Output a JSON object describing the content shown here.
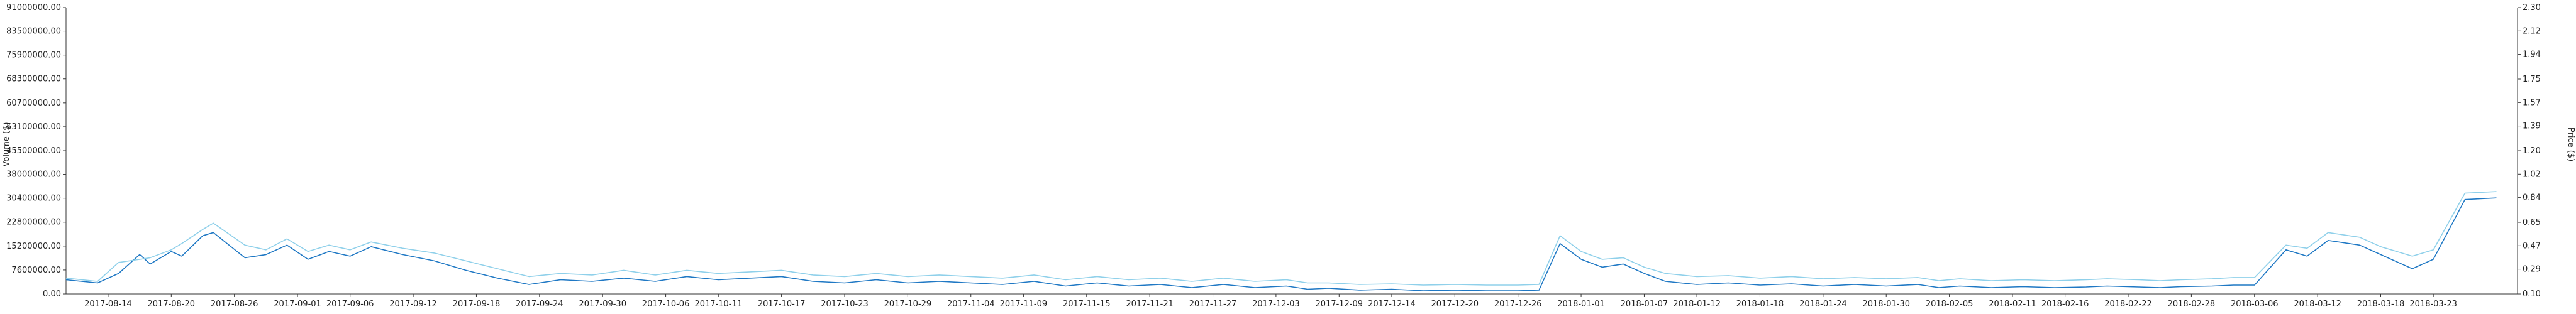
{
  "chart_data": {
    "type": "line",
    "title": "",
    "xlabel": "",
    "y_left_label": "Volume ($)",
    "y_right_label": "Price ($)",
    "x_range": [
      "2017-08-10",
      "2018-03-31"
    ],
    "y_left_range": [
      0,
      91000000
    ],
    "y_right_range": [
      0.1,
      2.3
    ],
    "y_left_ticks": [
      "0.00",
      "7600000.00",
      "15200000.00",
      "22800000.00",
      "30400000.00",
      "38000000.00",
      "45500000.00",
      "53100000.00",
      "60700000.00",
      "68300000.00",
      "75900000.00",
      "83500000.00",
      "91000000.00"
    ],
    "y_right_ticks": [
      "0.10",
      "0.29",
      "0.47",
      "0.65",
      "0.84",
      "1.02",
      "1.20",
      "1.39",
      "1.57",
      "1.75",
      "1.94",
      "2.12",
      "2.30"
    ],
    "x_ticks": [
      "2017-08-14",
      "2017-08-20",
      "2017-08-26",
      "2017-09-01",
      "2017-09-06",
      "2017-09-12",
      "2017-09-18",
      "2017-09-24",
      "2017-09-30",
      "2017-10-06",
      "2017-10-11",
      "2017-10-17",
      "2017-10-23",
      "2017-10-29",
      "2017-11-04",
      "2017-11-09",
      "2017-11-15",
      "2017-11-21",
      "2017-11-27",
      "2017-12-03",
      "2017-12-09",
      "2017-12-14",
      "2017-12-20",
      "2017-12-26",
      "2018-01-01",
      "2018-01-07",
      "2018-01-12",
      "2018-01-18",
      "2018-01-24",
      "2018-01-30",
      "2018-02-05",
      "2018-02-11",
      "2018-02-16",
      "2018-02-22",
      "2018-02-28",
      "2018-03-06",
      "2018-03-12",
      "2018-03-18",
      "2018-03-23"
    ],
    "grid": false,
    "colors": {
      "volume": "#1f78c4",
      "price": "#8fd0ea"
    },
    "series": [
      {
        "axis": "left",
        "color": "#1f78c4",
        "points": [
          [
            "2017-08-10",
            4500000
          ],
          [
            "2017-08-13",
            3500000
          ],
          [
            "2017-08-15",
            6500000
          ],
          [
            "2017-08-17",
            12500000
          ],
          [
            "2017-08-18",
            9500000
          ],
          [
            "2017-08-20",
            13500000
          ],
          [
            "2017-08-21",
            12000000
          ],
          [
            "2017-08-23",
            18500000
          ],
          [
            "2017-08-24",
            19500000
          ],
          [
            "2017-08-27",
            11500000
          ],
          [
            "2017-08-29",
            12500000
          ],
          [
            "2017-08-31",
            15500000
          ],
          [
            "2017-09-02",
            11000000
          ],
          [
            "2017-09-04",
            13500000
          ],
          [
            "2017-09-06",
            12000000
          ],
          [
            "2017-09-08",
            15000000
          ],
          [
            "2017-09-11",
            12500000
          ],
          [
            "2017-09-14",
            10500000
          ],
          [
            "2017-09-17",
            7500000
          ],
          [
            "2017-09-20",
            5000000
          ],
          [
            "2017-09-23",
            3000000
          ],
          [
            "2017-09-26",
            4500000
          ],
          [
            "2017-09-29",
            4000000
          ],
          [
            "2017-10-02",
            5000000
          ],
          [
            "2017-10-05",
            4000000
          ],
          [
            "2017-10-08",
            5500000
          ],
          [
            "2017-10-11",
            4500000
          ],
          [
            "2017-10-14",
            5000000
          ],
          [
            "2017-10-17",
            5500000
          ],
          [
            "2017-10-20",
            4000000
          ],
          [
            "2017-10-23",
            3500000
          ],
          [
            "2017-10-26",
            4500000
          ],
          [
            "2017-10-29",
            3500000
          ],
          [
            "2017-11-01",
            4000000
          ],
          [
            "2017-11-04",
            3500000
          ],
          [
            "2017-11-07",
            3000000
          ],
          [
            "2017-11-10",
            4000000
          ],
          [
            "2017-11-13",
            2500000
          ],
          [
            "2017-11-16",
            3500000
          ],
          [
            "2017-11-19",
            2500000
          ],
          [
            "2017-11-22",
            3000000
          ],
          [
            "2017-11-25",
            2000000
          ],
          [
            "2017-11-28",
            3000000
          ],
          [
            "2017-12-01",
            2000000
          ],
          [
            "2017-12-04",
            2500000
          ],
          [
            "2017-12-06",
            1500000
          ],
          [
            "2017-12-08",
            1800000
          ],
          [
            "2017-12-11",
            1200000
          ],
          [
            "2017-12-14",
            1500000
          ],
          [
            "2017-12-17",
            1000000
          ],
          [
            "2017-12-20",
            1200000
          ],
          [
            "2017-12-23",
            1000000
          ],
          [
            "2017-12-26",
            1000000
          ],
          [
            "2017-12-28",
            1200000
          ],
          [
            "2017-12-30",
            16000000
          ],
          [
            "2018-01-01",
            11000000
          ],
          [
            "2018-01-03",
            8500000
          ],
          [
            "2018-01-05",
            9500000
          ],
          [
            "2018-01-07",
            6500000
          ],
          [
            "2018-01-09",
            4000000
          ],
          [
            "2018-01-12",
            3000000
          ],
          [
            "2018-01-15",
            3500000
          ],
          [
            "2018-01-18",
            2800000
          ],
          [
            "2018-01-21",
            3200000
          ],
          [
            "2018-01-24",
            2500000
          ],
          [
            "2018-01-27",
            3000000
          ],
          [
            "2018-01-30",
            2500000
          ],
          [
            "2018-02-02",
            3000000
          ],
          [
            "2018-02-04",
            2000000
          ],
          [
            "2018-02-06",
            2500000
          ],
          [
            "2018-02-09",
            2000000
          ],
          [
            "2018-02-12",
            2300000
          ],
          [
            "2018-02-15",
            2000000
          ],
          [
            "2018-02-18",
            2200000
          ],
          [
            "2018-02-20",
            2500000
          ],
          [
            "2018-02-23",
            2200000
          ],
          [
            "2018-02-25",
            2000000
          ],
          [
            "2018-02-27",
            2300000
          ],
          [
            "2018-03-02",
            2500000
          ],
          [
            "2018-03-04",
            2800000
          ],
          [
            "2018-03-06",
            2800000
          ],
          [
            "2018-03-09",
            14000000
          ],
          [
            "2018-03-11",
            12000000
          ],
          [
            "2018-03-13",
            17000000
          ],
          [
            "2018-03-16",
            15500000
          ],
          [
            "2018-03-18",
            12500000
          ],
          [
            "2018-03-21",
            8000000
          ],
          [
            "2018-03-23",
            11000000
          ],
          [
            "2018-03-26",
            30000000
          ],
          [
            "2018-03-29",
            30500000
          ]
        ]
      },
      {
        "axis": "left",
        "color": "#8fd0ea",
        "points": [
          [
            "2017-08-10",
            5000000
          ],
          [
            "2017-08-13",
            4000000
          ],
          [
            "2017-08-15",
            10000000
          ],
          [
            "2017-08-17",
            11000000
          ],
          [
            "2017-08-18",
            11500000
          ],
          [
            "2017-08-20",
            14000000
          ],
          [
            "2017-08-21",
            16000000
          ],
          [
            "2017-08-23",
            20500000
          ],
          [
            "2017-08-24",
            22500000
          ],
          [
            "2017-08-27",
            15500000
          ],
          [
            "2017-08-29",
            14000000
          ],
          [
            "2017-08-31",
            17500000
          ],
          [
            "2017-09-02",
            13500000
          ],
          [
            "2017-09-04",
            15500000
          ],
          [
            "2017-09-06",
            14000000
          ],
          [
            "2017-09-08",
            16500000
          ],
          [
            "2017-09-11",
            14500000
          ],
          [
            "2017-09-14",
            13000000
          ],
          [
            "2017-09-17",
            10500000
          ],
          [
            "2017-09-20",
            8000000
          ],
          [
            "2017-09-23",
            5500000
          ],
          [
            "2017-09-26",
            6500000
          ],
          [
            "2017-09-29",
            6000000
          ],
          [
            "2017-10-02",
            7500000
          ],
          [
            "2017-10-05",
            6000000
          ],
          [
            "2017-10-08",
            7500000
          ],
          [
            "2017-10-11",
            6500000
          ],
          [
            "2017-10-14",
            7000000
          ],
          [
            "2017-10-17",
            7500000
          ],
          [
            "2017-10-20",
            6000000
          ],
          [
            "2017-10-23",
            5500000
          ],
          [
            "2017-10-26",
            6500000
          ],
          [
            "2017-10-29",
            5500000
          ],
          [
            "2017-11-01",
            6000000
          ],
          [
            "2017-11-04",
            5500000
          ],
          [
            "2017-11-07",
            5000000
          ],
          [
            "2017-11-10",
            6000000
          ],
          [
            "2017-11-13",
            4500000
          ],
          [
            "2017-11-16",
            5500000
          ],
          [
            "2017-11-19",
            4500000
          ],
          [
            "2017-11-22",
            5000000
          ],
          [
            "2017-11-25",
            4000000
          ],
          [
            "2017-11-28",
            5000000
          ],
          [
            "2017-12-01",
            4000000
          ],
          [
            "2017-12-04",
            4500000
          ],
          [
            "2017-12-06",
            3500000
          ],
          [
            "2017-12-08",
            3500000
          ],
          [
            "2017-12-11",
            3000000
          ],
          [
            "2017-12-14",
            3200000
          ],
          [
            "2017-12-17",
            2800000
          ],
          [
            "2017-12-20",
            3000000
          ],
          [
            "2017-12-23",
            2800000
          ],
          [
            "2017-12-26",
            2800000
          ],
          [
            "2017-12-28",
            3000000
          ],
          [
            "2017-12-30",
            18500000
          ],
          [
            "2018-01-01",
            13500000
          ],
          [
            "2018-01-03",
            11000000
          ],
          [
            "2018-01-05",
            11500000
          ],
          [
            "2018-01-07",
            8500000
          ],
          [
            "2018-01-09",
            6500000
          ],
          [
            "2018-01-12",
            5500000
          ],
          [
            "2018-01-15",
            5800000
          ],
          [
            "2018-01-18",
            5000000
          ],
          [
            "2018-01-21",
            5500000
          ],
          [
            "2018-01-24",
            4800000
          ],
          [
            "2018-01-27",
            5200000
          ],
          [
            "2018-01-30",
            4800000
          ],
          [
            "2018-02-02",
            5200000
          ],
          [
            "2018-02-04",
            4200000
          ],
          [
            "2018-02-06",
            4800000
          ],
          [
            "2018-02-09",
            4200000
          ],
          [
            "2018-02-12",
            4500000
          ],
          [
            "2018-02-15",
            4200000
          ],
          [
            "2018-02-18",
            4500000
          ],
          [
            "2018-02-20",
            4800000
          ],
          [
            "2018-02-23",
            4500000
          ],
          [
            "2018-02-25",
            4200000
          ],
          [
            "2018-02-27",
            4500000
          ],
          [
            "2018-03-02",
            4800000
          ],
          [
            "2018-03-04",
            5200000
          ],
          [
            "2018-03-06",
            5200000
          ],
          [
            "2018-03-09",
            15500000
          ],
          [
            "2018-03-11",
            14500000
          ],
          [
            "2018-03-13",
            19500000
          ],
          [
            "2018-03-16",
            18000000
          ],
          [
            "2018-03-18",
            15000000
          ],
          [
            "2018-03-21",
            12000000
          ],
          [
            "2018-03-23",
            14000000
          ],
          [
            "2018-03-26",
            32000000
          ],
          [
            "2018-03-29",
            32500000
          ]
        ]
      }
    ]
  }
}
